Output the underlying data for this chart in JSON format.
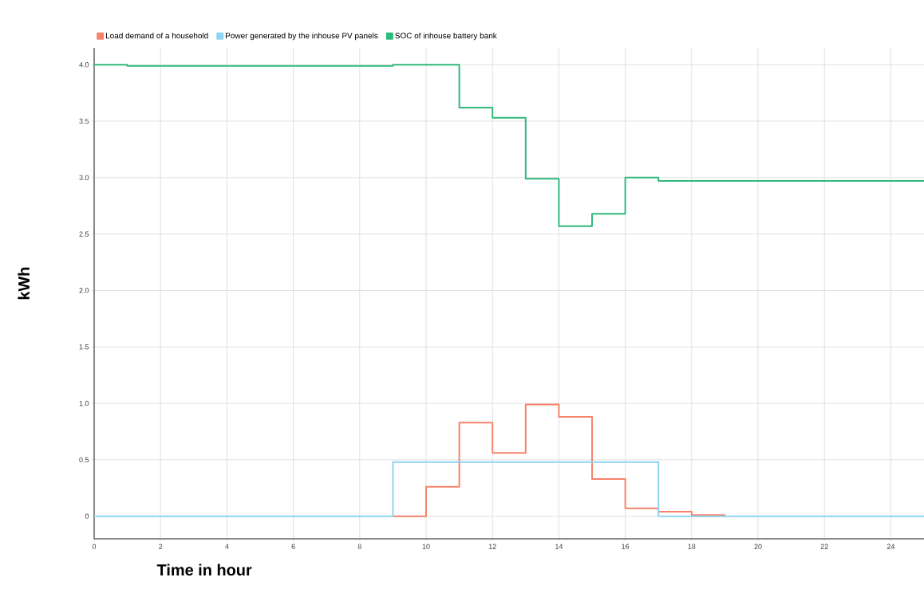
{
  "chart_data": {
    "type": "step",
    "xlabel": "Time in hour",
    "ylabel": "kWh",
    "x": [
      0,
      1,
      2,
      3,
      4,
      5,
      6,
      7,
      8,
      9,
      10,
      11,
      12,
      13,
      14,
      15,
      16,
      17,
      18,
      19,
      20,
      21,
      22,
      23,
      24,
      25
    ],
    "series": [
      {
        "name": "Load demand of a household",
        "color": "#f7826a",
        "values": [
          null,
          null,
          null,
          null,
          null,
          null,
          null,
          null,
          null,
          0,
          0.26,
          0.83,
          0.56,
          0.99,
          0.88,
          0.33,
          0.07,
          0.04,
          0.01,
          0,
          null,
          null,
          null,
          null,
          null,
          null
        ]
      },
      {
        "name": "Power generated by the inhouse PV panels",
        "color": "#8fd4f2",
        "values": [
          0,
          0,
          0,
          0,
          0,
          0,
          0,
          0,
          0,
          0.48,
          0.48,
          0.48,
          0.48,
          0.48,
          0.48,
          0.48,
          0.48,
          0,
          0,
          0,
          0,
          0,
          0,
          0,
          0,
          0
        ]
      },
      {
        "name": "SOC of inhouse battery bank",
        "color": "#2fb97c",
        "values": [
          4.0,
          3.99,
          3.99,
          3.99,
          3.99,
          3.99,
          3.99,
          3.99,
          3.99,
          4.0,
          4.0,
          3.62,
          3.53,
          2.99,
          2.57,
          2.68,
          3.0,
          2.97,
          2.97,
          2.97,
          2.97,
          2.97,
          2.97,
          2.97,
          2.97,
          2.97
        ]
      }
    ],
    "xlim": [
      0,
      25
    ],
    "ylim": [
      -0.2,
      4.15
    ],
    "xticks": [
      0,
      2,
      4,
      6,
      8,
      10,
      12,
      14,
      16,
      18,
      20,
      22,
      24
    ],
    "yticks": [
      {
        "value": 0,
        "label": "0"
      },
      {
        "value": 0.5,
        "label": "0.5"
      },
      {
        "value": 1,
        "label": "1.0"
      },
      {
        "value": 1.5,
        "label": "1.5"
      },
      {
        "value": 2,
        "label": "2.0"
      },
      {
        "value": 2.5,
        "label": "2.5"
      },
      {
        "value": 3,
        "label": "3.0"
      },
      {
        "value": 3.5,
        "label": "3.5"
      },
      {
        "value": 4,
        "label": "4.0"
      }
    ],
    "grid": true,
    "legend": "top left"
  }
}
